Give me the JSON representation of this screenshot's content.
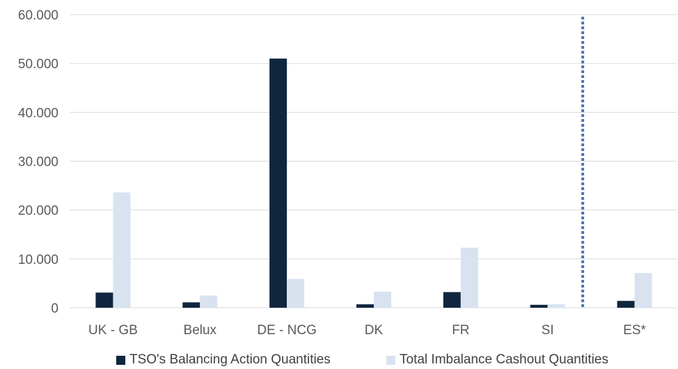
{
  "chart_data": {
    "type": "bar",
    "title": "",
    "xlabel": "",
    "ylabel": "",
    "categories": [
      "UK - GB",
      "Belux",
      "DE - NCG",
      "DK",
      "FR",
      "SI",
      "ES*"
    ],
    "series": [
      {
        "name": "TSO's Balancing Action Quantities",
        "color": "#10263f",
        "values": [
          3100,
          1100,
          51000,
          700,
          3200,
          600,
          1400
        ]
      },
      {
        "name": "Total Imbalance Cashout Quantities",
        "color": "#d9e3f0",
        "values": [
          23600,
          2500,
          5900,
          3300,
          12300,
          700,
          7100
        ]
      }
    ],
    "ylim": [
      0,
      60000
    ],
    "yticks": [
      0,
      10000,
      20000,
      30000,
      40000,
      50000,
      60000
    ],
    "ytick_labels": [
      "0",
      "10.000",
      "20.000",
      "30.000",
      "40.000",
      "50.000",
      "60.000"
    ],
    "grid": true,
    "legend_position": "bottom",
    "separator": {
      "style": "dotted",
      "color": "#4a76b8",
      "between_categories": [
        "SI",
        "ES*"
      ]
    }
  }
}
